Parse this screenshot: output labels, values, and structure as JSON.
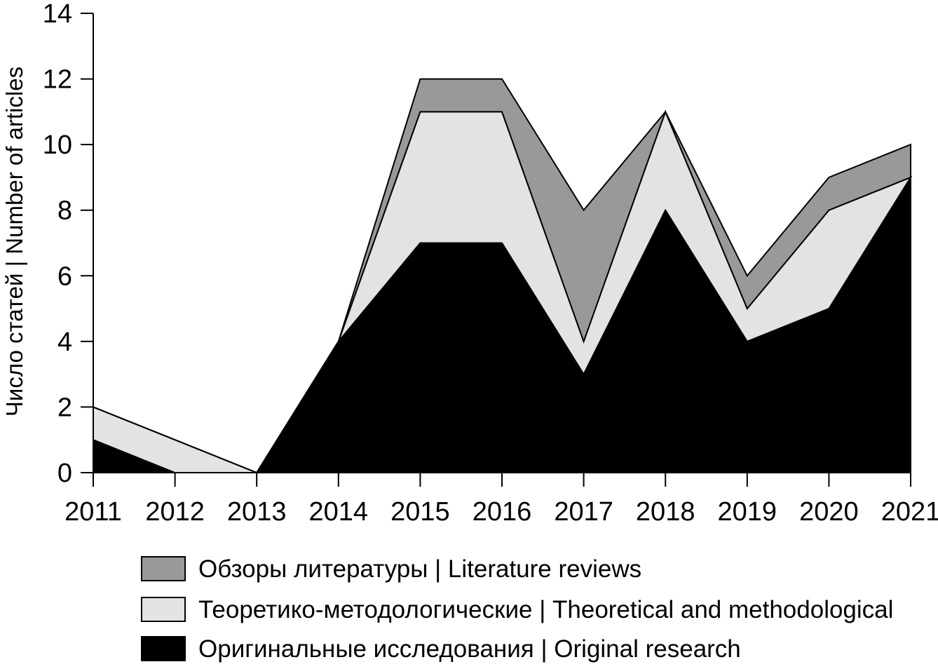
{
  "chart_data": {
    "type": "area",
    "stacked": true,
    "x": [
      "2011",
      "2012",
      "2013",
      "2014",
      "2015",
      "2016",
      "2017",
      "2018",
      "2019",
      "2020",
      "2021"
    ],
    "series": [
      {
        "name": "Оригинальные исследования | Original research",
        "color": "#000000",
        "values": [
          1,
          0,
          0,
          4,
          7,
          7,
          3,
          8,
          4,
          5,
          9
        ]
      },
      {
        "name": "Теоретико-методологические | Theoretical and methodological",
        "color": "#e3e3e3",
        "values": [
          1,
          1,
          0,
          0,
          4,
          4,
          1,
          3,
          1,
          3,
          0
        ]
      },
      {
        "name": "Обзоры литературы | Literature reviews",
        "color": "#999999",
        "values": [
          0,
          0,
          0,
          0,
          1,
          1,
          4,
          0,
          1,
          1,
          1
        ]
      }
    ],
    "legend_order": [
      2,
      1,
      0
    ],
    "ylabel": "Число статей | Number of articles",
    "xlabel": "",
    "ylim": [
      0,
      14
    ],
    "yticks": [
      "0",
      "2",
      "4",
      "6",
      "8",
      "10",
      "12",
      "14"
    ],
    "grid": false,
    "legend_position": "bottom"
  }
}
